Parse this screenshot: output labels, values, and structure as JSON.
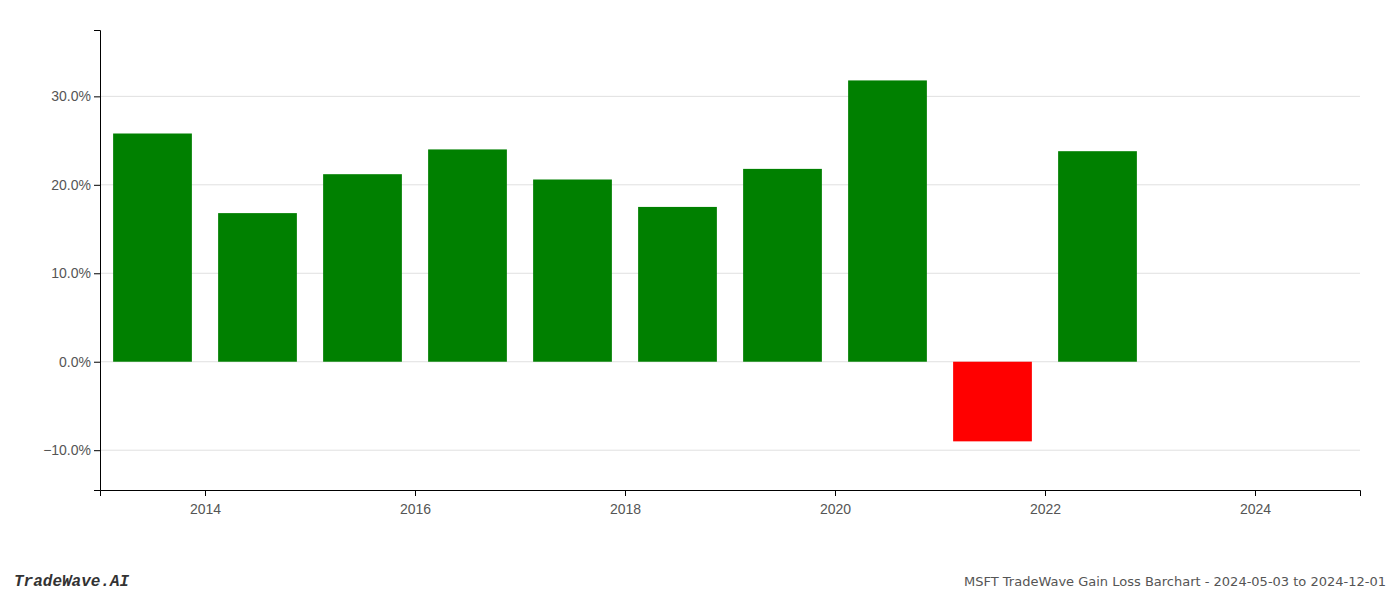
{
  "chart_data": {
    "type": "bar",
    "x": [
      2013.5,
      2014.5,
      2015.5,
      2016.5,
      2017.5,
      2018.5,
      2019.5,
      2020.5,
      2021.5,
      2022.5
    ],
    "values": [
      0.258,
      0.168,
      0.212,
      0.24,
      0.206,
      0.175,
      0.218,
      0.318,
      -0.09,
      0.238
    ],
    "colors": [
      "#008000",
      "#008000",
      "#008000",
      "#008000",
      "#008000",
      "#008000",
      "#008000",
      "#008000",
      "#ff0000",
      "#008000"
    ],
    "xlim": [
      2013.0,
      2025.0
    ],
    "xticks": [
      2014,
      2016,
      2018,
      2020,
      2022,
      2024
    ],
    "ylim": [
      -0.145,
      0.375
    ],
    "yticks": [
      {
        "value": -0.1,
        "label": "−10.0%"
      },
      {
        "value": 0.0,
        "label": "0.0%"
      },
      {
        "value": 0.1,
        "label": "10.0%"
      },
      {
        "value": 0.2,
        "label": "20.0%"
      },
      {
        "value": 0.3,
        "label": "30.0%"
      }
    ],
    "grid": true,
    "annotations": [
      "TradeWave.AI",
      "MSFT TradeWave Gain Loss Barchart - 2024-05-03 to 2024-12-01"
    ]
  }
}
